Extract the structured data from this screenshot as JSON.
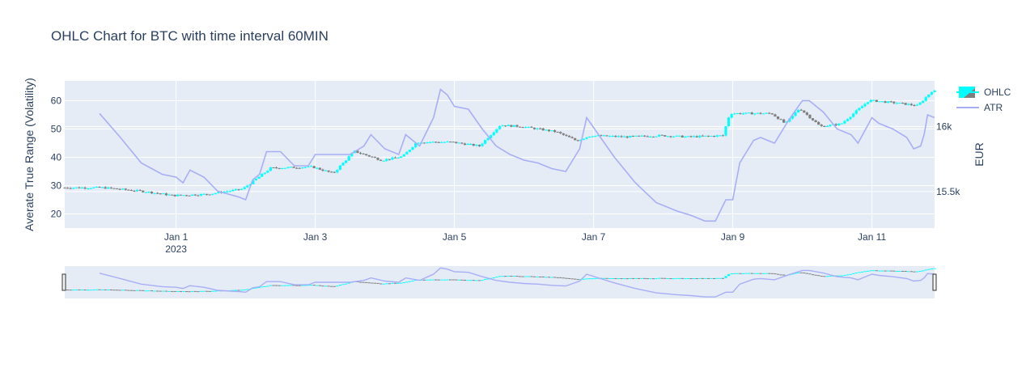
{
  "chart_data": {
    "type": "ohlc",
    "title": "OHLC Chart for BTC with time interval 60MIN",
    "y_left_label": "Averate True Range (Volatility)",
    "y_right_label": "EUR",
    "x_ticks": [
      {
        "value": 1.0,
        "label": "Jan 1",
        "sub": "2023"
      },
      {
        "value": 3.0,
        "label": "Jan 3",
        "sub": ""
      },
      {
        "value": 5.0,
        "label": "Jan 5",
        "sub": ""
      },
      {
        "value": 7.0,
        "label": "Jan 7",
        "sub": ""
      },
      {
        "value": 9.0,
        "label": "Jan 9",
        "sub": ""
      },
      {
        "value": 11.0,
        "label": "Jan 11",
        "sub": ""
      }
    ],
    "x_range": [
      -0.6,
      11.9
    ],
    "y_left_range": [
      15,
      67
    ],
    "y_left_ticks": [
      20,
      30,
      40,
      50,
      60
    ],
    "y_right_range": [
      15220,
      16350
    ],
    "y_right_ticks": [
      {
        "value": 15500,
        "label": "15.5k"
      },
      {
        "value": 16000,
        "label": "16k"
      }
    ],
    "legend": [
      {
        "name": "OHLC",
        "color_up": "#00ffff",
        "color_down": "#7f7f7f"
      },
      {
        "name": "ATR",
        "color": "#a8aef5"
      }
    ],
    "ohlc_anchors": [
      [
        -0.6,
        15530
      ],
      [
        0.0,
        15530
      ],
      [
        0.6,
        15500
      ],
      [
        1.0,
        15470
      ],
      [
        1.5,
        15480
      ],
      [
        2.0,
        15520
      ],
      [
        2.15,
        15580
      ],
      [
        2.4,
        15680
      ],
      [
        3.0,
        15690
      ],
      [
        3.3,
        15640
      ],
      [
        3.6,
        15810
      ],
      [
        4.0,
        15740
      ],
      [
        4.3,
        15770
      ],
      [
        4.5,
        15880
      ],
      [
        5.0,
        15880
      ],
      [
        5.4,
        15850
      ],
      [
        5.7,
        16010
      ],
      [
        6.0,
        16000
      ],
      [
        6.5,
        15960
      ],
      [
        6.8,
        15890
      ],
      [
        7.0,
        15930
      ],
      [
        7.5,
        15920
      ],
      [
        8.0,
        15930
      ],
      [
        8.4,
        15920
      ],
      [
        8.9,
        15930
      ],
      [
        9.0,
        16100
      ],
      [
        9.6,
        16100
      ],
      [
        9.8,
        16020
      ],
      [
        10.0,
        16140
      ],
      [
        10.3,
        16000
      ],
      [
        10.6,
        16020
      ],
      [
        11.0,
        16200
      ],
      [
        11.4,
        16180
      ],
      [
        11.7,
        16160
      ],
      [
        11.9,
        16270
      ]
    ],
    "atr": [
      [
        -0.1,
        55.5
      ],
      [
        0.2,
        47
      ],
      [
        0.5,
        38
      ],
      [
        0.8,
        34
      ],
      [
        1.0,
        33
      ],
      [
        1.1,
        31
      ],
      [
        1.2,
        35.5
      ],
      [
        1.4,
        33
      ],
      [
        1.6,
        28
      ],
      [
        1.9,
        26
      ],
      [
        2.0,
        25
      ],
      [
        2.1,
        32
      ],
      [
        2.2,
        34
      ],
      [
        2.3,
        42
      ],
      [
        2.5,
        42
      ],
      [
        2.7,
        37
      ],
      [
        2.9,
        37
      ],
      [
        3.0,
        41
      ],
      [
        3.3,
        41
      ],
      [
        3.5,
        41
      ],
      [
        3.7,
        44
      ],
      [
        3.8,
        48
      ],
      [
        4.0,
        43
      ],
      [
        4.2,
        41
      ],
      [
        4.3,
        48
      ],
      [
        4.5,
        44
      ],
      [
        4.6,
        49
      ],
      [
        4.7,
        54
      ],
      [
        4.8,
        64
      ],
      [
        4.9,
        62
      ],
      [
        5.0,
        58
      ],
      [
        5.2,
        57
      ],
      [
        5.4,
        50
      ],
      [
        5.6,
        44
      ],
      [
        5.8,
        41
      ],
      [
        6.0,
        39
      ],
      [
        6.2,
        38
      ],
      [
        6.4,
        36
      ],
      [
        6.6,
        35
      ],
      [
        6.8,
        43
      ],
      [
        6.9,
        54
      ],
      [
        7.1,
        47
      ],
      [
        7.3,
        40
      ],
      [
        7.6,
        31
      ],
      [
        7.9,
        24
      ],
      [
        8.2,
        21
      ],
      [
        8.4,
        19.5
      ],
      [
        8.6,
        17.5
      ],
      [
        8.75,
        17.5
      ],
      [
        8.9,
        25
      ],
      [
        9.0,
        25
      ],
      [
        9.1,
        38
      ],
      [
        9.3,
        46
      ],
      [
        9.4,
        47
      ],
      [
        9.6,
        45
      ],
      [
        9.8,
        53
      ],
      [
        10.0,
        60
      ],
      [
        10.1,
        60
      ],
      [
        10.3,
        56
      ],
      [
        10.5,
        50
      ],
      [
        10.7,
        48
      ],
      [
        10.8,
        45
      ],
      [
        11.0,
        54
      ],
      [
        11.1,
        52
      ],
      [
        11.3,
        50
      ],
      [
        11.5,
        47
      ],
      [
        11.6,
        43
      ],
      [
        11.7,
        44
      ],
      [
        11.75,
        48
      ],
      [
        11.8,
        55
      ],
      [
        11.9,
        54
      ]
    ]
  }
}
